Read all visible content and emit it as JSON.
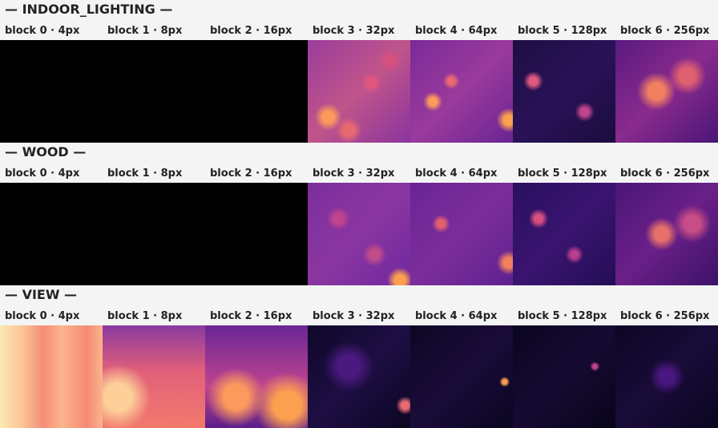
{
  "sections": [
    {
      "title": "— INDOOR_LIGHTING —",
      "blocks": [
        "block 0 · 4px",
        "block 1 · 8px",
        "block 2 · 16px",
        "block 3 · 32px",
        "block 4 · 64px",
        "block 5 · 128px",
        "block 6 · 256px"
      ]
    },
    {
      "title": "— WOOD —",
      "blocks": [
        "block 0 · 4px",
        "block 1 · 8px",
        "block 2 · 16px",
        "block 3 · 32px",
        "block 4 · 64px",
        "block 5 · 128px",
        "block 6 · 256px"
      ]
    },
    {
      "title": "— VIEW —",
      "blocks": [
        "block 0 · 4px",
        "block 1 · 8px",
        "block 2 · 16px",
        "block 3 · 32px",
        "block 4 · 64px",
        "block 5 · 128px",
        "block 6 · 256px"
      ]
    }
  ]
}
